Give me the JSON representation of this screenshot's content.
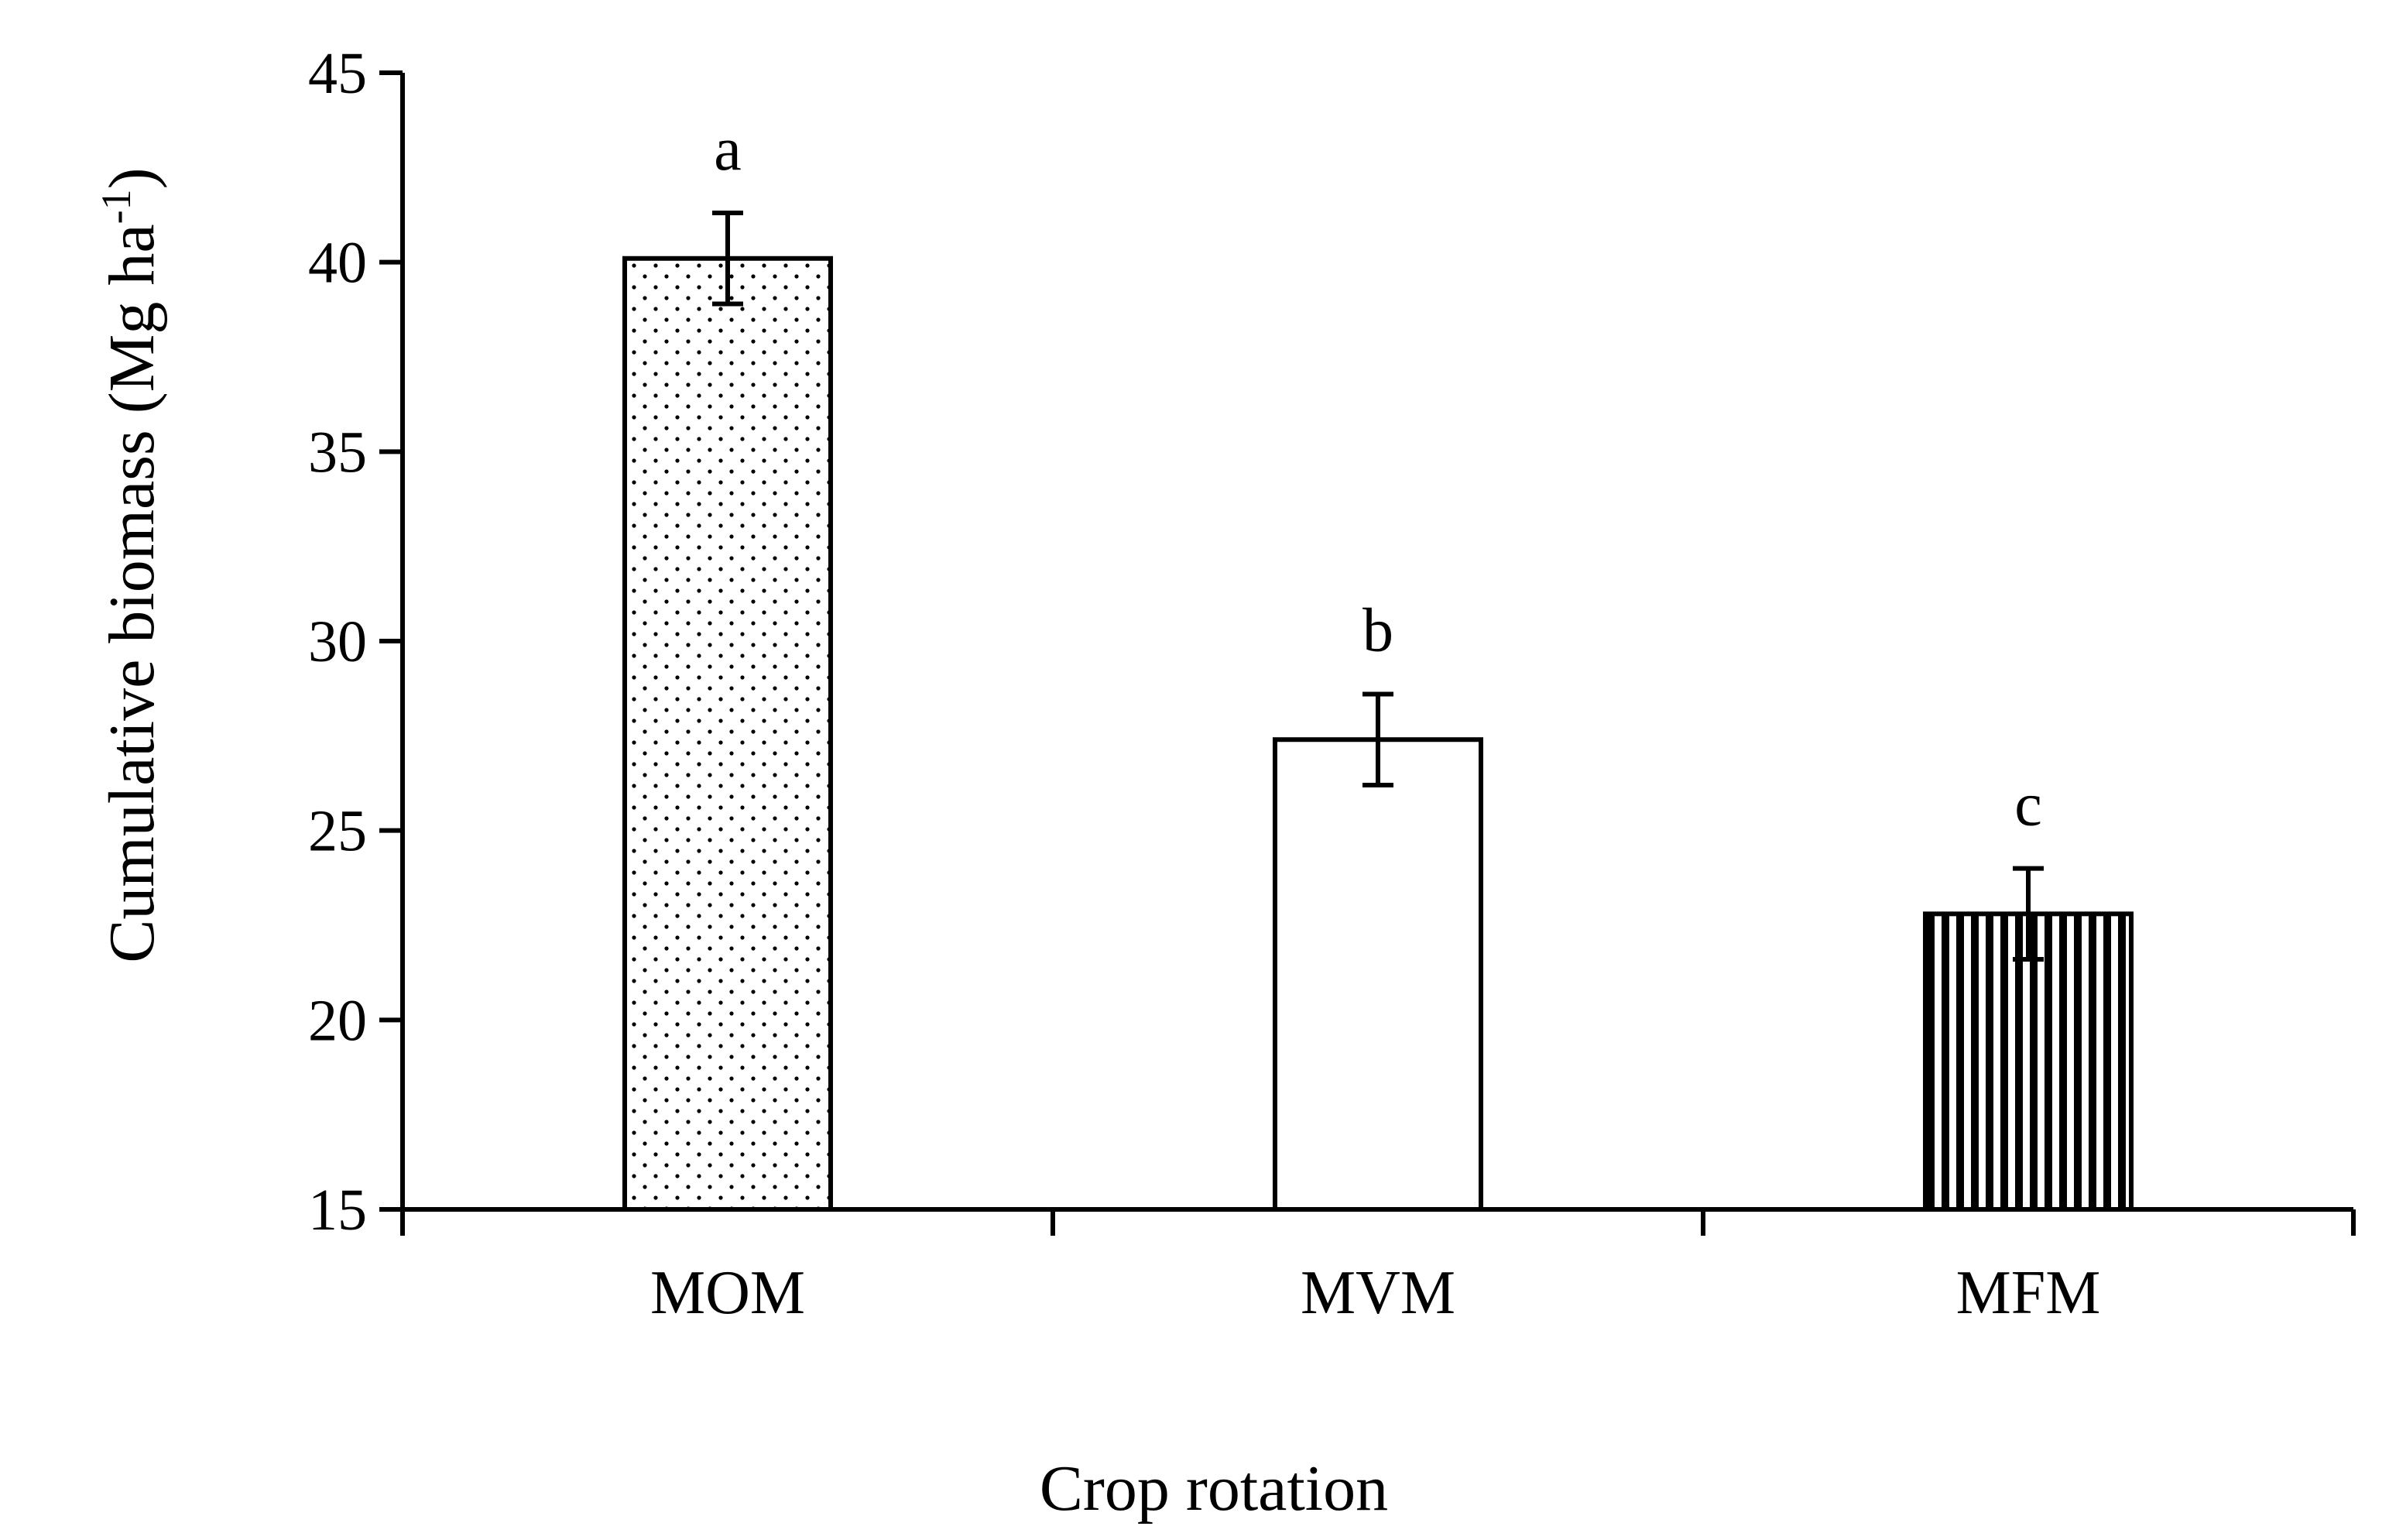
{
  "chart_data": {
    "type": "bar",
    "title": "",
    "xlabel": "Crop rotation",
    "ylabel": "Cumulative biomass (Mg ha",
    "ylabel_superscript": "-1",
    "ylabel_close": ")",
    "ylim": [
      15,
      45
    ],
    "yticks": [
      15,
      20,
      25,
      30,
      35,
      40,
      45
    ],
    "grid": false,
    "categories": [
      "MOM",
      "MVM",
      "MFM"
    ],
    "values": [
      40.1,
      27.4,
      22.8
    ],
    "errors": [
      1.2,
      1.2,
      1.2
    ],
    "significance_letters": [
      "a",
      "b",
      "c"
    ],
    "fill_patterns": [
      "dots",
      "none",
      "vertical-lines"
    ]
  }
}
